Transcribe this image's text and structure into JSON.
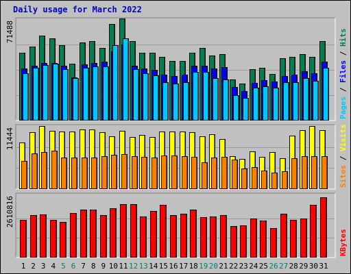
{
  "chart_data": {
    "type": "bar",
    "title": "Daily usage for March 2022",
    "background": "#c0c0c0",
    "x": [
      1,
      2,
      3,
      4,
      5,
      6,
      7,
      8,
      9,
      10,
      11,
      12,
      13,
      14,
      15,
      16,
      17,
      18,
      19,
      20,
      21,
      22,
      23,
      24,
      25,
      26,
      27,
      28,
      29,
      30,
      31
    ],
    "weekend_days": [
      5,
      6,
      12,
      13,
      19,
      20,
      26,
      27
    ],
    "colors": {
      "day_label": "#000000",
      "weekend_label": "#00806c"
    },
    "panels": [
      {
        "name": "hits-files-pages",
        "ymax_label": "71488",
        "ymax": 71488,
        "legend": [
          {
            "text": "Pages",
            "color": "#00c8ff"
          },
          {
            "text": " / ",
            "color": "#000000"
          },
          {
            "text": "Files",
            "color": "#0000ff"
          },
          {
            "text": " / ",
            "color": "#000000"
          },
          {
            "text": "Hits",
            "color": "#008050"
          }
        ],
        "series": [
          {
            "name": "Hits",
            "color": "#008050",
            "values": [
              48000,
              52000,
              60000,
              58000,
              53000,
              40000,
              55000,
              56000,
              51000,
              68000,
              72000,
              56000,
              48000,
              48000,
              45000,
              42000,
              42000,
              48000,
              51000,
              46000,
              47000,
              29000,
              26000,
              36000,
              37000,
              33000,
              44000,
              45000,
              47000,
              45000,
              56000
            ]
          },
          {
            "name": "Files",
            "color": "#0000ff",
            "values": [
              38000,
              40000,
              42000,
              42000,
              40000,
              32000,
              41000,
              42000,
              43000,
              50000,
              55000,
              40000,
              38000,
              37000,
              34000,
              33000,
              34000,
              40000,
              40000,
              38000,
              39000,
              25000,
              22000,
              28000,
              30000,
              29000,
              33000,
              34000,
              36000,
              35000,
              43000
            ]
          },
          {
            "name": "Pages",
            "color": "#00c8ff",
            "values": [
              36000,
              40000,
              42000,
              43000,
              39000,
              33000,
              40000,
              41000,
              41000,
              56000,
              61000,
              39000,
              36000,
              35000,
              30000,
              29000,
              30000,
              37000,
              37000,
              33000,
              32000,
              21000,
              19000,
              26000,
              27000,
              26000,
              30000,
              30000,
              33000,
              31000,
              40000
            ]
          }
        ]
      },
      {
        "name": "visits-sites",
        "ymax_label": "11444",
        "ymax": 11444,
        "legend": [
          {
            "text": "Sites",
            "color": "#ff8000"
          },
          {
            "text": " / ",
            "color": "#000000"
          },
          {
            "text": "Visits",
            "color": "#ffff00"
          }
        ],
        "series": [
          {
            "name": "Visits",
            "color": "#ffff00",
            "values": [
              8500,
              10300,
              11400,
              10600,
              10400,
              10400,
              10800,
              10800,
              10300,
              9600,
              10600,
              9500,
              9800,
              9400,
              10500,
              10400,
              10400,
              10300,
              9600,
              10000,
              9100,
              6000,
              5500,
              6800,
              5800,
              6700,
              5600,
              9700,
              10700,
              11400,
              10700
            ]
          },
          {
            "name": "Sites",
            "color": "#ff8000",
            "values": [
              5500,
              6800,
              7100,
              7300,
              6100,
              6100,
              6100,
              6100,
              6400,
              6600,
              6700,
              6300,
              6200,
              6100,
              6500,
              6500,
              6400,
              6200,
              5200,
              6100,
              6200,
              5700,
              4100,
              4300,
              3700,
              3400,
              3600,
              6000,
              6300,
              6300,
              6400
            ]
          }
        ]
      },
      {
        "name": "kbytes",
        "ymax_label": "2610816",
        "ymax": 2610816,
        "legend": [
          {
            "text": "KBytes",
            "color": "#ff0000"
          }
        ],
        "series": [
          {
            "name": "KBytes",
            "color": "#ff0000",
            "values": [
              1670000,
              1890000,
              1900000,
              1660000,
              1570000,
              1980000,
              2110000,
              2110000,
              1880000,
              2190000,
              2360000,
              2360000,
              1820000,
              2070000,
              2340000,
              1870000,
              1940000,
              2140000,
              1780000,
              1820000,
              1870000,
              1410000,
              1420000,
              1730000,
              1630000,
              1310000,
              1930000,
              1680000,
              1720000,
              2340000,
              2660000
            ]
          }
        ]
      }
    ]
  }
}
